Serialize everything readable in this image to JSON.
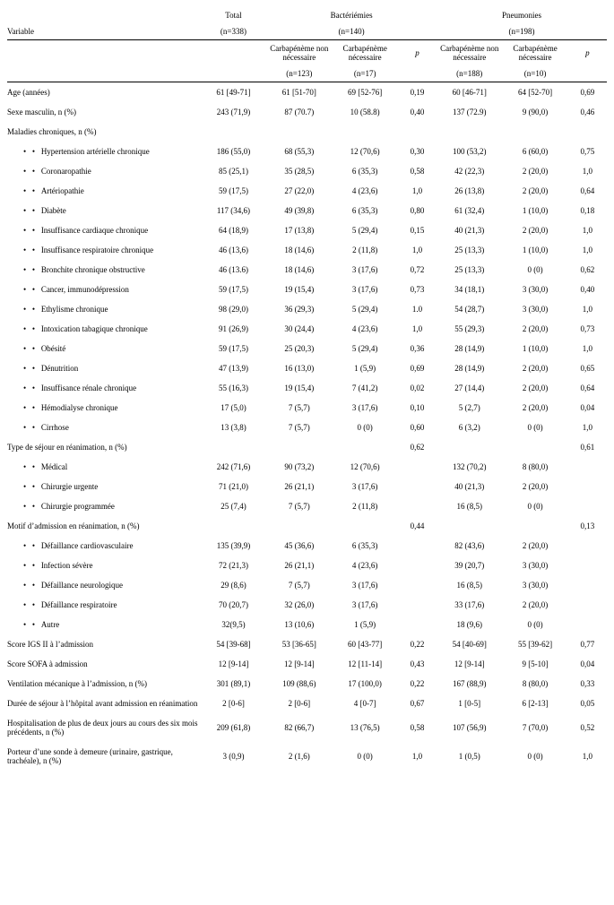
{
  "headers": {
    "variable": "Variable",
    "total": "Total",
    "bact": "Bactériémies",
    "pneu": "Pneumonies",
    "nTotal": "(n=338)",
    "nBact": "(n=140)",
    "nPneu": "(n=198)",
    "carbNN": "Carbapénème non nécessaire",
    "carbN": "Carbapénème nécessaire",
    "p": "p",
    "nB_nn": "(n=123)",
    "nB_n": "(n=17)",
    "nP_nn": "(n=188)",
    "nP_n": "(n=10)"
  },
  "rows": [
    {
      "t": "data",
      "label": "Age (années)",
      "total": "61 [49-71]",
      "bnn": "61 [51-70]",
      "bn": "69 [52-76]",
      "bp": "0,19",
      "pnn": "60 [46-71]",
      "pn": "64 [52-70]",
      "pp": "0,69"
    },
    {
      "t": "data",
      "label": "Sexe masculin, n (%)",
      "total": "243 (71,9)",
      "bnn": "87 (70.7)",
      "bn": "10 (58.8)",
      "bp": "0,40",
      "pnn": "137 (72.9)",
      "pn": "9 (90,0)",
      "pp": "0,46"
    },
    {
      "t": "section",
      "label": "Maladies chroniques, n (%)"
    },
    {
      "t": "bullet",
      "label": "Hypertension artérielle chronique",
      "total": "186 (55,0)",
      "bnn": "68 (55,3)",
      "bn": "12 (70,6)",
      "bp": "0,30",
      "pnn": "100 (53,2)",
      "pn": "6 (60,0)",
      "pp": "0,75"
    },
    {
      "t": "bullet",
      "label": "Coronaropathie",
      "total": "85 (25,1)",
      "bnn": "35 (28,5)",
      "bn": "6 (35,3)",
      "bp": "0,58",
      "pnn": "42 (22,3)",
      "pn": "2 (20,0)",
      "pp": "1,0"
    },
    {
      "t": "bullet",
      "label": "Artériopathie",
      "total": "59 (17,5)",
      "bnn": "27 (22,0)",
      "bn": "4 (23,6)",
      "bp": "1,0",
      "pnn": "26 (13,8)",
      "pn": "2 (20,0)",
      "pp": "0,64"
    },
    {
      "t": "bullet",
      "label": "Diabète",
      "total": "117 (34,6)",
      "bnn": "49 (39,8)",
      "bn": "6 (35,3)",
      "bp": "0,80",
      "pnn": "61 (32,4)",
      "pn": "1 (10,0)",
      "pp": "0,18"
    },
    {
      "t": "bullet",
      "label": "Insuffisance cardiaque chronique",
      "total": "64 (18,9)",
      "bnn": "17 (13,8)",
      "bn": "5 (29,4)",
      "bp": "0,15",
      "pnn": "40 (21,3)",
      "pn": "2 (20,0)",
      "pp": "1,0"
    },
    {
      "t": "bullet",
      "label": "Insuffisance respiratoire chronique",
      "total": "46 (13,6)",
      "bnn": "18 (14,6)",
      "bn": "2 (11,8)",
      "bp": "1,0",
      "pnn": "25 (13,3)",
      "pn": "1 (10,0)",
      "pp": "1,0"
    },
    {
      "t": "bullet",
      "label": "Bronchite chronique obstructive",
      "total": "46 (13.6)",
      "bnn": "18 (14,6)",
      "bn": "3 (17,6)",
      "bp": "0,72",
      "pnn": "25 (13,3)",
      "pn": "0 (0)",
      "pp": "0,62"
    },
    {
      "t": "bullet",
      "label": "Cancer, immunodépression",
      "total": "59 (17,5)",
      "bnn": "19 (15,4)",
      "bn": "3 (17,6)",
      "bp": "0,73",
      "pnn": "34 (18,1)",
      "pn": "3 (30,0)",
      "pp": "0,40"
    },
    {
      "t": "bullet",
      "label": "Ethylisme chronique",
      "total": "98 (29,0)",
      "bnn": "36 (29,3)",
      "bn": "5 (29,4)",
      "bp": "1.0",
      "pnn": "54 (28,7)",
      "pn": "3 (30,0)",
      "pp": "1,0"
    },
    {
      "t": "bullet",
      "label": "Intoxication tabagique chronique",
      "total": "91 (26,9)",
      "bnn": "30 (24,4)",
      "bn": "4 (23,6)",
      "bp": "1,0",
      "pnn": "55 (29,3)",
      "pn": "2 (20,0)",
      "pp": "0,73"
    },
    {
      "t": "bullet",
      "label": "Obésité",
      "total": "59 (17,5)",
      "bnn": "25 (20,3)",
      "bn": "5 (29,4)",
      "bp": "0,36",
      "pnn": "28 (14,9)",
      "pn": "1 (10,0)",
      "pp": "1,0"
    },
    {
      "t": "bullet",
      "label": "Dénutrition",
      "total": "47 (13,9)",
      "bnn": "16 (13,0)",
      "bn": "1 (5,9)",
      "bp": "0,69",
      "pnn": "28 (14,9)",
      "pn": "2 (20,0)",
      "pp": "0,65"
    },
    {
      "t": "bullet",
      "label": "Insuffisance rénale chronique",
      "total": "55 (16,3)",
      "bnn": "19 (15,4)",
      "bn": "7 (41,2)",
      "bp": "0,02",
      "pnn": "27 (14,4)",
      "pn": "2 (20,0)",
      "pp": "0,64"
    },
    {
      "t": "bullet",
      "label": "Hémodialyse chronique",
      "total": "17 (5,0)",
      "bnn": "7 (5,7)",
      "bn": "3 (17,6)",
      "bp": "0,10",
      "pnn": "5 (2,7)",
      "pn": "2 (20,0)",
      "pp": "0,04"
    },
    {
      "t": "bullet",
      "label": "Cirrhose",
      "total": "13 (3,8)",
      "bnn": "7 (5,7)",
      "bn": "0 (0)",
      "bp": "0,60",
      "pnn": "6 (3,2)",
      "pn": "0 (0)",
      "pp": "1,0"
    },
    {
      "t": "section",
      "label": "Type de séjour en réanimation, n (%)",
      "bp": "0,62",
      "pp": "0,61"
    },
    {
      "t": "bullet",
      "label": "Médical",
      "total": "242 (71,6)",
      "bnn": "90 (73,2)",
      "bn": "12 (70,6)",
      "bp": "",
      "pnn": "132 (70,2)",
      "pn": "8 (80,0)",
      "pp": ""
    },
    {
      "t": "bullet",
      "label": "Chirurgie urgente",
      "total": "71 (21,0)",
      "bnn": "26 (21,1)",
      "bn": "3 (17,6)",
      "bp": "",
      "pnn": "40 (21,3)",
      "pn": "2 (20,0)",
      "pp": ""
    },
    {
      "t": "bullet",
      "label": "Chirurgie programmée",
      "total": "25 (7,4)",
      "bnn": "7 (5,7)",
      "bn": "2 (11,8)",
      "bp": "",
      "pnn": "16 (8,5)",
      "pn": "0 (0)",
      "pp": ""
    },
    {
      "t": "section",
      "label": "Motif  d’admission en réanimation, n (%)",
      "bp": "0,44",
      "pp": "0,13"
    },
    {
      "t": "bullet",
      "label": "Défaillance cardiovasculaire",
      "total": "135 (39,9)",
      "bnn": "45 (36,6)",
      "bn": "6 (35,3)",
      "bp": "",
      "pnn": "82 (43,6)",
      "pn": "2 (20,0)",
      "pp": ""
    },
    {
      "t": "bullet",
      "label": "Infection sévère",
      "total": "72 (21,3)",
      "bnn": "26 (21,1)",
      "bn": "4 (23,6)",
      "bp": "",
      "pnn": "39 (20,7)",
      "pn": "3 (30,0)",
      "pp": ""
    },
    {
      "t": "bullet",
      "label": "Défaillance neurologique",
      "total": "29 (8,6)",
      "bnn": "7 (5,7)",
      "bn": "3 (17,6)",
      "bp": "",
      "pnn": "16 (8,5)",
      "pn": "3 (30,0)",
      "pp": ""
    },
    {
      "t": "bullet",
      "label": "Défaillance respiratoire",
      "total": "70 (20,7)",
      "bnn": "32 (26,0)",
      "bn": "3 (17,6)",
      "bp": "",
      "pnn": "33 (17,6)",
      "pn": "2 (20,0)",
      "pp": ""
    },
    {
      "t": "bullet",
      "label": "Autre",
      "total": "32(9,5)",
      "bnn": "13 (10,6)",
      "bn": "1 (5,9)",
      "bp": "",
      "pnn": "18 (9,6)",
      "pn": "0 (0)",
      "pp": ""
    },
    {
      "t": "data",
      "label": "Score IGS  II à l’admission",
      "total": "54 [39-68]",
      "bnn": "53 [36-65]",
      "bn": "60 [43-77]",
      "bp": "0,22",
      "pnn": "54 [40-69]",
      "pn": "55 [39-62]",
      "pp": "0,77"
    },
    {
      "t": "data",
      "label": "Score SOFA à admission",
      "total": "12 [9-14]",
      "bnn": "12 [9-14]",
      "bn": "12 [11-14]",
      "bp": "0,43",
      "pnn": "12 [9-14]",
      "pn": "9 [5-10]",
      "pp": "0,04"
    },
    {
      "t": "data",
      "label": "Ventilation mécanique à l’admission, n (%)",
      "total": "301 (89,1)",
      "bnn": "109 (88,6)",
      "bn": "17 (100,0)",
      "bp": "0,22",
      "pnn": "167 (88,9)",
      "pn": "8 (80,0)",
      "pp": "0,33"
    },
    {
      "t": "data",
      "label": "Durée de séjour à l’hôpital avant admission en réanimation",
      "total": "2 [0-6]",
      "bnn": "2 [0-6]",
      "bn": "4 [0-7]",
      "bp": "0,67",
      "pnn": "1 [0-5]",
      "pn": "6 [2-13]",
      "pp": "0,05"
    },
    {
      "t": "data",
      "label": "Hospitalisation de plus de deux jours au cours des six mois précédents, n (%)",
      "total": "209 (61,8)",
      "bnn": "82 (66,7)",
      "bn": "13 (76,5)",
      "bp": "0,58",
      "pnn": "107 (56,9)",
      "pn": "7 (70,0)",
      "pp": "0,52"
    },
    {
      "t": "data",
      "label": "Porteur d’une sonde à demeure (urinaire, gastrique, trachéale), n (%)",
      "total": "3 (0,9)",
      "bnn": "2 (1,6)",
      "bn": "0 (0)",
      "bp": "1,0",
      "pnn": "1 (0,5)",
      "pn": "0 (0)",
      "pp": "1,0"
    }
  ]
}
